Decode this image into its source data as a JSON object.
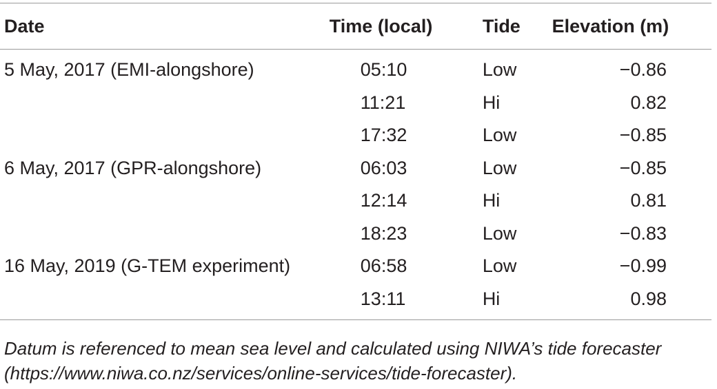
{
  "table": {
    "headers": {
      "date": "Date",
      "time": "Time (local)",
      "tide": "Tide",
      "elevation": "Elevation (m)"
    },
    "rows": [
      {
        "date": "5 May, 2017 (EMI-alongshore)",
        "time": "05:10",
        "tide": "Low",
        "elevation": "−0.86"
      },
      {
        "date": "",
        "time": "11:21",
        "tide": "Hi",
        "elevation": "0.82"
      },
      {
        "date": "",
        "time": "17:32",
        "tide": "Low",
        "elevation": "−0.85"
      },
      {
        "date": "6 May, 2017 (GPR-alongshore)",
        "time": "06:03",
        "tide": "Low",
        "elevation": "−0.85"
      },
      {
        "date": "",
        "time": "12:14",
        "tide": "Hi",
        "elevation": "0.81"
      },
      {
        "date": "",
        "time": "18:23",
        "tide": "Low",
        "elevation": "−0.83"
      },
      {
        "date": "16 May, 2019 (G-TEM experiment)",
        "time": "06:58",
        "tide": "Low",
        "elevation": "−0.99"
      },
      {
        "date": "",
        "time": "13:11",
        "tide": "Hi",
        "elevation": "0.98"
      }
    ]
  },
  "footnote": {
    "line1": "Datum is referenced to mean sea level and calculated using NIWA’s tide forecaster",
    "line2": "(https://www.niwa.co.nz/services/online-services/tide-forecaster)."
  }
}
